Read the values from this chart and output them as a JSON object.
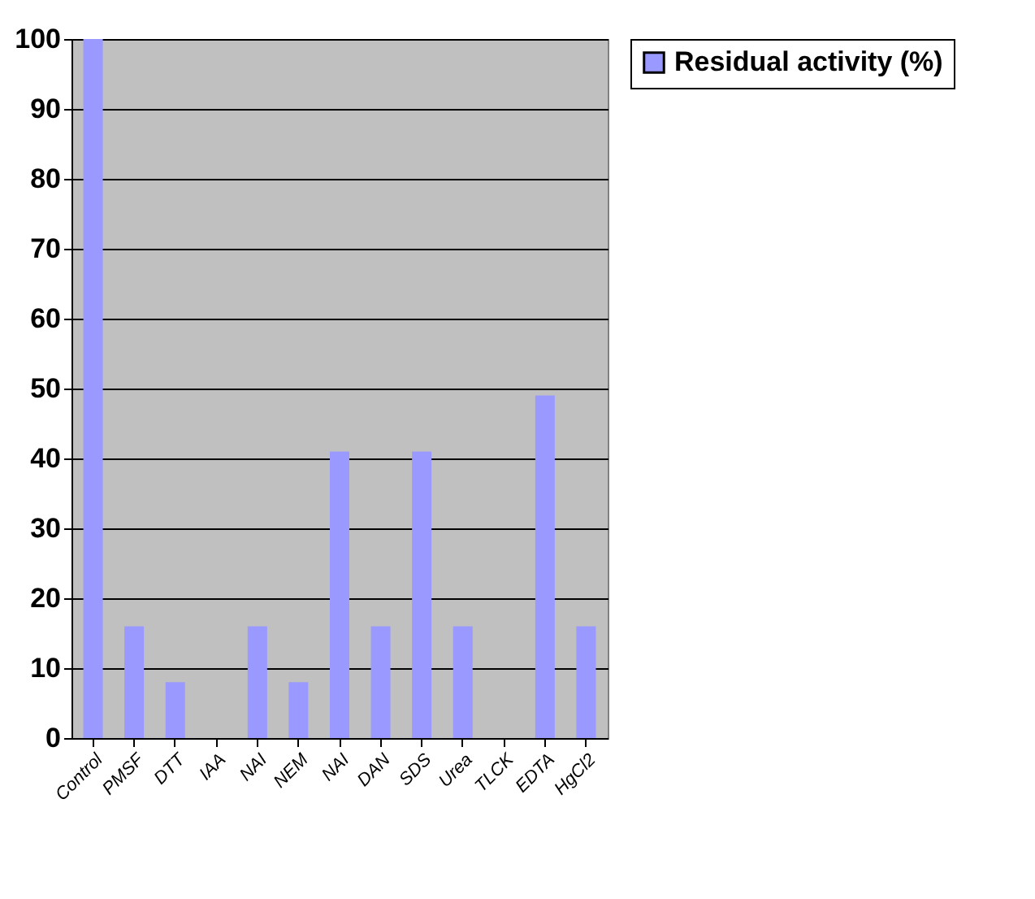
{
  "chart_data": {
    "type": "bar",
    "categories": [
      "Control",
      "PMSF",
      "DTT",
      "IAA",
      "NAI",
      "NEM",
      "NAI",
      "DAN",
      "SDS",
      "Urea",
      "TLCK",
      "EDTA",
      "HgCl2"
    ],
    "series": [
      {
        "name": "Residual activity (%)",
        "color": "#9999ff",
        "values": [
          100,
          16,
          8,
          0,
          16,
          8,
          41,
          16,
          41,
          16,
          0,
          49,
          16
        ]
      }
    ],
    "ylim": [
      0,
      100
    ],
    "yticks": [
      0,
      10,
      20,
      30,
      40,
      50,
      60,
      70,
      80,
      90,
      100
    ],
    "grid": "y",
    "legend": "right"
  }
}
